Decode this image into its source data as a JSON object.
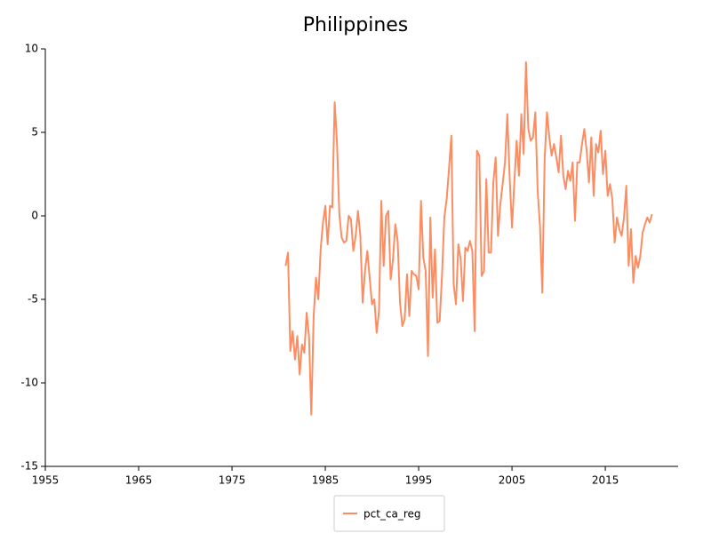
{
  "chart_data": {
    "type": "line",
    "title": "Philippines",
    "x": [
      1980.75,
      1981,
      1981.25,
      1981.5,
      1981.75,
      1982,
      1982.25,
      1982.5,
      1982.75,
      1983,
      1983.25,
      1983.5,
      1983.75,
      1984,
      1984.25,
      1984.5,
      1984.75,
      1985,
      1985.25,
      1985.5,
      1985.75,
      1986,
      1986.25,
      1986.5,
      1986.75,
      1987,
      1987.25,
      1987.5,
      1987.75,
      1988,
      1988.25,
      1988.5,
      1988.75,
      1989,
      1989.25,
      1989.5,
      1989.75,
      1990,
      1990.25,
      1990.5,
      1990.75,
      1991,
      1991.25,
      1991.5,
      1991.75,
      1992,
      1992.25,
      1992.5,
      1992.75,
      1993,
      1993.25,
      1993.5,
      1993.75,
      1994,
      1994.25,
      1994.5,
      1994.75,
      1995,
      1995.25,
      1995.5,
      1995.75,
      1996,
      1996.25,
      1996.5,
      1996.75,
      1997,
      1997.25,
      1997.5,
      1997.75,
      1998,
      1998.25,
      1998.5,
      1998.75,
      1999,
      1999.25,
      1999.5,
      1999.75,
      2000,
      2000.25,
      2000.5,
      2000.75,
      2001,
      2001.25,
      2001.5,
      2001.75,
      2002,
      2002.25,
      2002.5,
      2002.75,
      2003,
      2003.25,
      2003.5,
      2003.75,
      2004,
      2004.25,
      2004.5,
      2004.75,
      2005,
      2005.25,
      2005.5,
      2005.75,
      2006,
      2006.25,
      2006.5,
      2006.75,
      2007,
      2007.25,
      2007.5,
      2007.75,
      2008,
      2008.25,
      2008.5,
      2008.75,
      2009,
      2009.25,
      2009.5,
      2009.75,
      2010,
      2010.25,
      2010.5,
      2010.75,
      2011,
      2011.25,
      2011.5,
      2011.75,
      2012,
      2012.25,
      2012.5,
      2012.75,
      2013,
      2013.25,
      2013.5,
      2013.75,
      2014,
      2014.25,
      2014.5,
      2014.75,
      2015,
      2015.25,
      2015.5,
      2015.75,
      2016,
      2016.25,
      2016.5,
      2016.75,
      2017,
      2017.25,
      2017.5,
      2017.75,
      2018,
      2018.25,
      2018.5,
      2018.75,
      2019,
      2019.25,
      2019.5,
      2019.75,
      2020
    ],
    "series": [
      {
        "name": "pct_ca_reg",
        "color": "#fc8d62",
        "values": [
          -3.0,
          -2.2,
          -8.1,
          -6.9,
          -8.6,
          -7.2,
          -9.5,
          -7.7,
          -8.2,
          -5.8,
          -7.2,
          -11.9,
          -6.0,
          -3.7,
          -5.0,
          -2.0,
          -0.4,
          0.6,
          -1.7,
          0.6,
          0.5,
          6.8,
          4.4,
          0.1,
          -1.3,
          -1.6,
          -1.5,
          0.0,
          -0.2,
          -2.1,
          -1.2,
          0.3,
          -1.2,
          -5.2,
          -3.3,
          -2.1,
          -3.7,
          -5.3,
          -5.0,
          -7.0,
          -5.7,
          0.9,
          -3.0,
          0.0,
          0.3,
          -3.8,
          -2.6,
          -0.5,
          -1.5,
          -5.2,
          -6.6,
          -6.2,
          -3.5,
          -6.0,
          -3.3,
          -3.5,
          -3.6,
          -4.4,
          0.9,
          -2.5,
          -3.3,
          -8.4,
          -0.1,
          -4.9,
          -2.0,
          -6.4,
          -6.3,
          -3.6,
          -0.1,
          1.0,
          2.8,
          4.8,
          -4.1,
          -5.3,
          -1.7,
          -2.6,
          -5.1,
          -1.9,
          -2.1,
          -1.5,
          -2.1,
          -6.9,
          3.9,
          3.6,
          -3.6,
          -3.3,
          2.2,
          -2.2,
          -2.2,
          2.0,
          3.5,
          -1.2,
          0.7,
          1.9,
          3.2,
          6.1,
          2.3,
          -0.7,
          2.0,
          4.5,
          2.4,
          6.1,
          3.7,
          9.2,
          5.2,
          4.5,
          4.7,
          6.2,
          1.5,
          -0.6,
          -4.6,
          3.4,
          6.2,
          4.7,
          3.6,
          4.3,
          3.5,
          2.6,
          4.8,
          2.4,
          1.6,
          2.7,
          2.1,
          3.2,
          -0.3,
          3.2,
          3.2,
          4.3,
          5.2,
          3.9,
          2.0,
          4.7,
          1.2,
          4.3,
          3.8,
          5.1,
          2.5,
          3.9,
          1.2,
          1.9,
          1.0,
          -1.6,
          -0.1,
          -0.8,
          -1.2,
          -0.1,
          1.8,
          -3.0,
          -0.8,
          -4.0,
          -2.4,
          -3.1,
          -2.4,
          -1.0,
          -0.5,
          -0.1,
          -0.4,
          0.1
        ]
      }
    ],
    "xlim": [
      1955,
      2022.8
    ],
    "xticks": [
      1955,
      1965,
      1975,
      1985,
      1995,
      2005,
      2015
    ],
    "ylim": [
      -15,
      10
    ],
    "yticks": [
      -15,
      -10,
      -5,
      0,
      5,
      10
    ]
  }
}
